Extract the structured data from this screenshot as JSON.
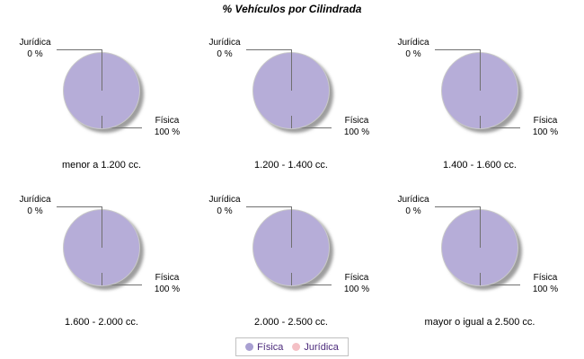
{
  "title": "% Vehículos por Cilindrada",
  "chart_data": {
    "type": "pie",
    "title": "% Vehículos por Cilindrada",
    "categories": [
      "Física",
      "Jurídica"
    ],
    "legend_position": "bottom",
    "grid": "off",
    "colors": {
      "fisica": "#b6add8",
      "juridica": "#f4c0c5"
    },
    "slice_labels": {
      "juridica_name": "Jurídica",
      "juridica_value": "0 %",
      "fisica_name": "Física",
      "fisica_value": "100 %"
    },
    "pies": [
      {
        "label": "menor a 1.200 cc.",
        "values": [
          100,
          0
        ]
      },
      {
        "label": "1.200 - 1.400 cc.",
        "values": [
          100,
          0
        ]
      },
      {
        "label": "1.400 - 1.600 cc.",
        "values": [
          100,
          0
        ]
      },
      {
        "label": "1.600 - 2.000 cc.",
        "values": [
          100,
          0
        ]
      },
      {
        "label": "2.000 - 2.500 cc.",
        "values": [
          100,
          0
        ]
      },
      {
        "label": "mayor o igual a 2.500 cc.",
        "values": [
          100,
          0
        ]
      }
    ]
  },
  "legend": {
    "items": [
      {
        "label": "Física",
        "color": "#a9a0d2"
      },
      {
        "label": "Jurídica",
        "color": "#f4c0c5"
      }
    ]
  }
}
